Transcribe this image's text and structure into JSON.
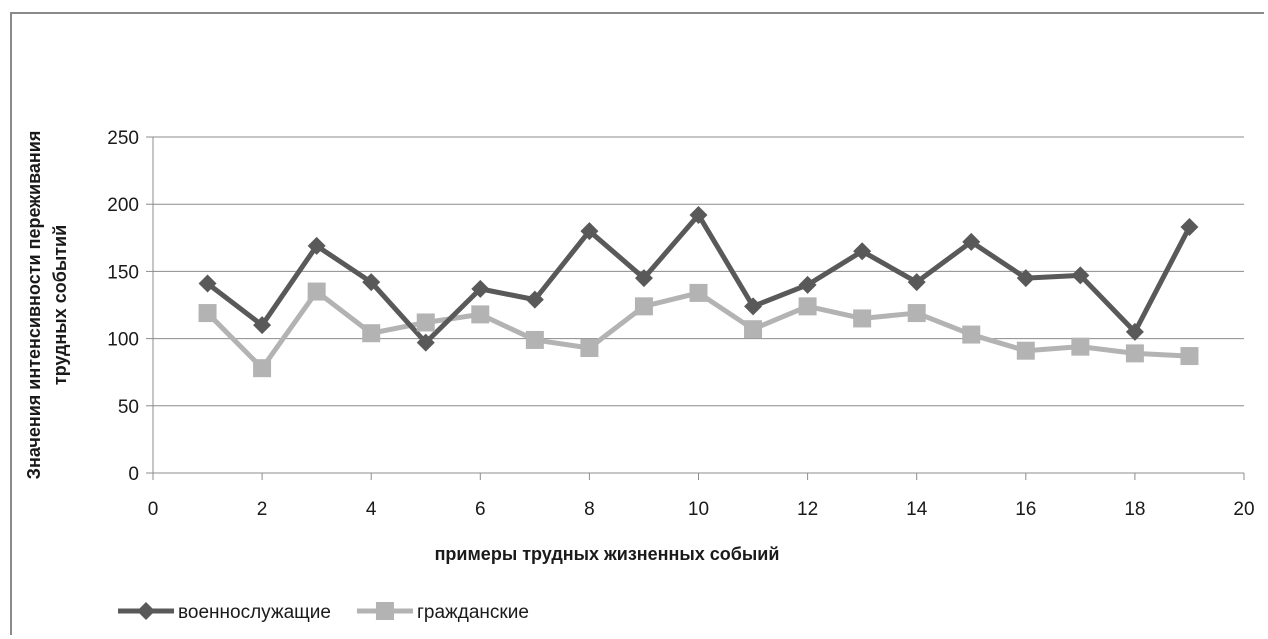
{
  "chart_data": {
    "type": "line",
    "title": "",
    "xlabel": "примеры трудных жизненных собыий",
    "ylabel_line1": "Значения интенсивности переживания",
    "ylabel_line2": "трудных событий",
    "xlim": [
      0,
      20
    ],
    "ylim": [
      0,
      250
    ],
    "x_ticks": [
      "0",
      "2",
      "4",
      "6",
      "8",
      "10",
      "12",
      "14",
      "16",
      "18",
      "20"
    ],
    "y_ticks": [
      "0",
      "50",
      "100",
      "150",
      "200",
      "250"
    ],
    "grid": "horizontal",
    "legend_position": "bottom-left",
    "x": [
      1,
      2,
      3,
      4,
      5,
      6,
      7,
      8,
      9,
      10,
      11,
      12,
      13,
      14,
      15,
      16,
      17,
      18,
      19
    ],
    "series": [
      {
        "name": "военнослужащие",
        "marker": "diamond",
        "color": "#595959",
        "values": [
          141,
          110,
          169,
          142,
          97,
          137,
          129,
          180,
          145,
          192,
          124,
          140,
          165,
          142,
          172,
          145,
          147,
          105,
          183
        ]
      },
      {
        "name": "гражданские",
        "marker": "square",
        "color": "#b3b3b3",
        "values": [
          119,
          78,
          135,
          104,
          112,
          118,
          99,
          93,
          124,
          134,
          107,
          124,
          115,
          119,
          103,
          91,
          94,
          89,
          87
        ]
      }
    ]
  }
}
